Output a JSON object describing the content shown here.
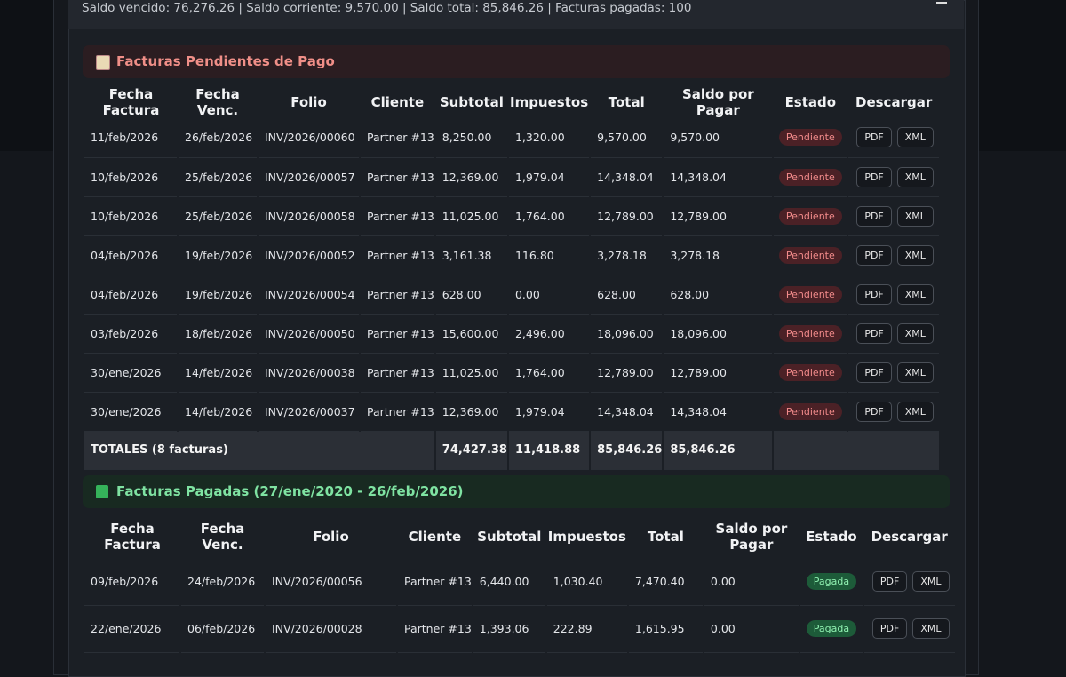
{
  "summary": "Saldo vencido: 76,276.26 | Saldo corriente: 9,570.00 | Saldo total: 85,846.26 | Facturas pagadas: 100",
  "download_labels": [
    "PDF",
    "XML"
  ],
  "pending": {
    "title": "Facturas Pendientes de Pago",
    "headers": [
      "Fecha Factura",
      "Fecha Venc.",
      "Folio",
      "Cliente",
      "Subtotal",
      "Impuestos",
      "Total",
      "Saldo por Pagar",
      "Estado",
      "Descargar"
    ],
    "rows": [
      [
        "11/feb/2026",
        "26/feb/2026",
        "INV/2026/00060",
        "Partner #13",
        "8,250.00",
        "1,320.00",
        "9,570.00",
        "9,570.00",
        "Pendiente"
      ],
      [
        "10/feb/2026",
        "25/feb/2026",
        "INV/2026/00057",
        "Partner #13",
        "12,369.00",
        "1,979.04",
        "14,348.04",
        "14,348.04",
        "Pendiente"
      ],
      [
        "10/feb/2026",
        "25/feb/2026",
        "INV/2026/00058",
        "Partner #13",
        "11,025.00",
        "1,764.00",
        "12,789.00",
        "12,789.00",
        "Pendiente"
      ],
      [
        "04/feb/2026",
        "19/feb/2026",
        "INV/2026/00052",
        "Partner #13",
        "3,161.38",
        "116.80",
        "3,278.18",
        "3,278.18",
        "Pendiente"
      ],
      [
        "04/feb/2026",
        "19/feb/2026",
        "INV/2026/00054",
        "Partner #13",
        "628.00",
        "0.00",
        "628.00",
        "628.00",
        "Pendiente"
      ],
      [
        "03/feb/2026",
        "18/feb/2026",
        "INV/2026/00050",
        "Partner #13",
        "15,600.00",
        "2,496.00",
        "18,096.00",
        "18,096.00",
        "Pendiente"
      ],
      [
        "30/ene/2026",
        "14/feb/2026",
        "INV/2026/00038",
        "Partner #13",
        "11,025.00",
        "1,764.00",
        "12,789.00",
        "12,789.00",
        "Pendiente"
      ],
      [
        "30/ene/2026",
        "14/feb/2026",
        "INV/2026/00037",
        "Partner #13",
        "12,369.00",
        "1,979.04",
        "14,348.04",
        "14,348.04",
        "Pendiente"
      ]
    ],
    "totals": {
      "label": "TOTALES (8 facturas)",
      "values": [
        "74,427.38",
        "11,418.88",
        "85,846.26",
        "85,846.26"
      ]
    }
  },
  "paid": {
    "title": "Facturas Pagadas (27/ene/2020 - 26/feb/2026)",
    "headers": [
      "Fecha Factura",
      "Fecha Venc.",
      "Folio",
      "Cliente",
      "Subtotal",
      "Impuestos",
      "Total",
      "Saldo por Pagar",
      "Estado",
      "Descargar"
    ],
    "rows": [
      [
        "09/feb/2026",
        "24/feb/2026",
        "INV/2026/00056",
        "Partner #13",
        "6,440.00",
        "1,030.40",
        "7,470.40",
        "0.00",
        "Pagada"
      ],
      [
        "22/ene/2026",
        "06/feb/2026",
        "INV/2026/00028",
        "Partner #13",
        "1,393.06",
        "222.89",
        "1,615.95",
        "0.00",
        "Pagada"
      ]
    ]
  }
}
